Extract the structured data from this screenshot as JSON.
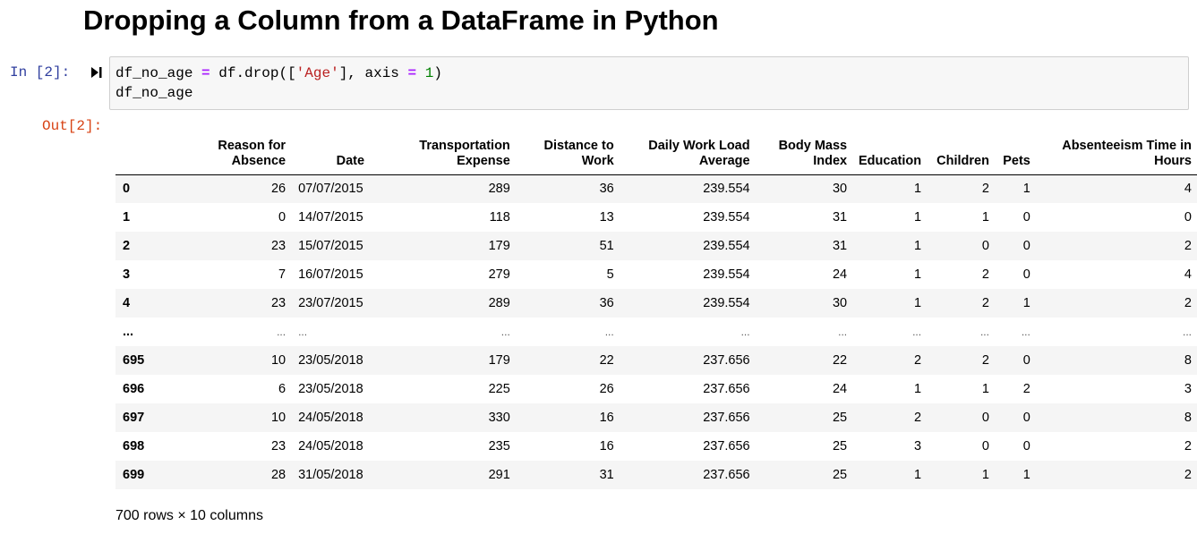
{
  "title": "Dropping a Column from a DataFrame in Python",
  "input_cell": {
    "prompt": "In [2]:",
    "code": {
      "line1": {
        "var": "df_no_age",
        "eq": "=",
        "call_start": "df.drop([",
        "string": "'Age'",
        "mid": "], axis",
        "eq2": "=",
        "num": "1",
        "end": ")"
      },
      "line2": "df_no_age"
    }
  },
  "output_cell": {
    "prompt": "Out[2]:",
    "table": {
      "columns": [
        {
          "l1": "Reason for",
          "l2": "Absence"
        },
        {
          "l1": "",
          "l2": "Date"
        },
        {
          "l1": "Transportation",
          "l2": "Expense"
        },
        {
          "l1": "Distance to",
          "l2": "Work"
        },
        {
          "l1": "Daily Work Load",
          "l2": "Average"
        },
        {
          "l1": "Body Mass",
          "l2": "Index"
        },
        {
          "l1": "",
          "l2": "Education"
        },
        {
          "l1": "",
          "l2": "Children"
        },
        {
          "l1": "",
          "l2": "Pets"
        },
        {
          "l1": "Absenteeism Time in",
          "l2": "Hours"
        }
      ],
      "rows": [
        {
          "index": "0",
          "cells": [
            "26",
            "07/07/2015",
            "289",
            "36",
            "239.554",
            "30",
            "1",
            "2",
            "1",
            "4"
          ]
        },
        {
          "index": "1",
          "cells": [
            "0",
            "14/07/2015",
            "118",
            "13",
            "239.554",
            "31",
            "1",
            "1",
            "0",
            "0"
          ]
        },
        {
          "index": "2",
          "cells": [
            "23",
            "15/07/2015",
            "179",
            "51",
            "239.554",
            "31",
            "1",
            "0",
            "0",
            "2"
          ]
        },
        {
          "index": "3",
          "cells": [
            "7",
            "16/07/2015",
            "279",
            "5",
            "239.554",
            "24",
            "1",
            "2",
            "0",
            "4"
          ]
        },
        {
          "index": "4",
          "cells": [
            "23",
            "23/07/2015",
            "289",
            "36",
            "239.554",
            "30",
            "1",
            "2",
            "1",
            "2"
          ]
        },
        {
          "index": "...",
          "cells": [
            "...",
            "...",
            "...",
            "...",
            "...",
            "...",
            "...",
            "...",
            "...",
            "..."
          ]
        },
        {
          "index": "695",
          "cells": [
            "10",
            "23/05/2018",
            "179",
            "22",
            "237.656",
            "22",
            "2",
            "2",
            "0",
            "8"
          ]
        },
        {
          "index": "696",
          "cells": [
            "6",
            "23/05/2018",
            "225",
            "26",
            "237.656",
            "24",
            "1",
            "1",
            "2",
            "3"
          ]
        },
        {
          "index": "697",
          "cells": [
            "10",
            "24/05/2018",
            "330",
            "16",
            "237.656",
            "25",
            "2",
            "0",
            "0",
            "8"
          ]
        },
        {
          "index": "698",
          "cells": [
            "23",
            "24/05/2018",
            "235",
            "16",
            "237.656",
            "25",
            "3",
            "0",
            "0",
            "2"
          ]
        },
        {
          "index": "699",
          "cells": [
            "28",
            "31/05/2018",
            "291",
            "31",
            "237.656",
            "25",
            "1",
            "1",
            "1",
            "2"
          ]
        }
      ]
    },
    "footer": "700 rows × 10 columns"
  },
  "icons": {
    "run": "run-cell-icon"
  }
}
